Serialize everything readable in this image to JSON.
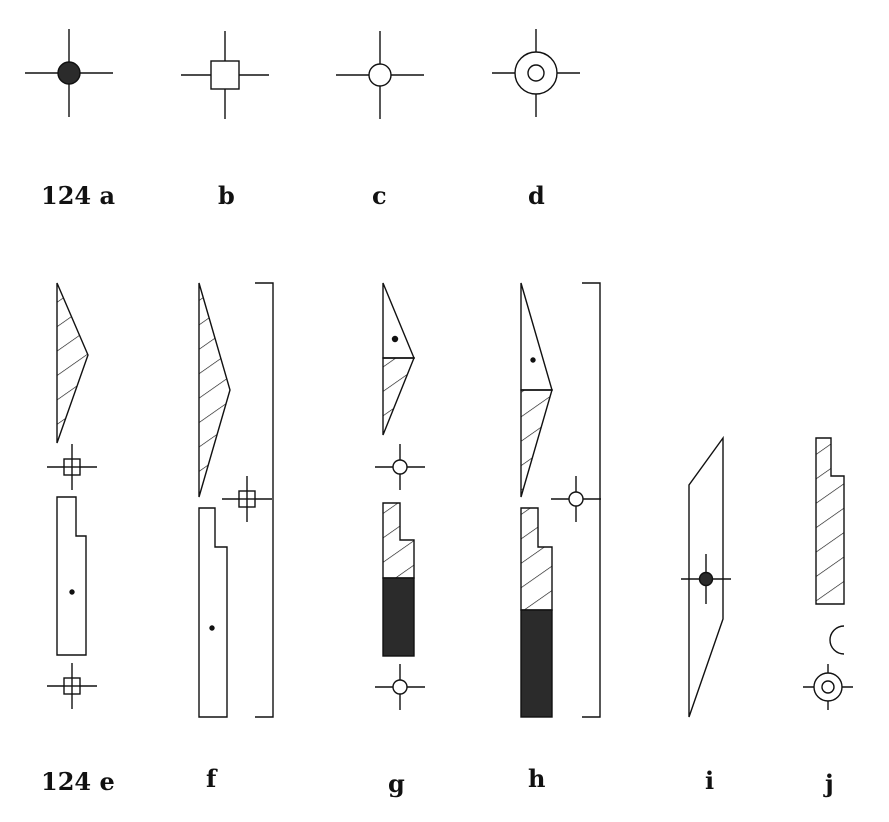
{
  "labels": {
    "a": "124 a",
    "b": "b",
    "c": "c",
    "d": "d",
    "e": "124 e",
    "f": "f",
    "g": "g",
    "h": "h",
    "i": "i",
    "j": "j"
  },
  "colors": {
    "ink": "#111111",
    "fill_dark": "#2b2b2b",
    "background": "#ffffff"
  }
}
